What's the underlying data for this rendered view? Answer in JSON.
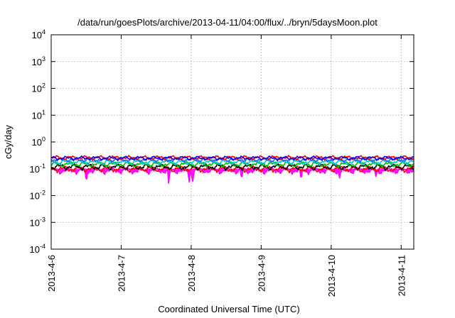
{
  "chart_data": {
    "type": "line",
    "title": "/data/run/goesPlots/archive/2013-04-11/04:00/flux/../bryn/5daysMoon.plot",
    "xlabel": "Coordinated Universal Time (UTC)",
    "ylabel": "cGy/day",
    "xlim": [
      0,
      5.18
    ],
    "x_ticks": [
      {
        "value": 0,
        "label": "2013-4-6"
      },
      {
        "value": 1,
        "label": "2013-4-7"
      },
      {
        "value": 2,
        "label": "2013-4-8"
      },
      {
        "value": 3,
        "label": "2013-4-9"
      },
      {
        "value": 4,
        "label": "2013-4-10"
      },
      {
        "value": 5,
        "label": "2013-4-11"
      }
    ],
    "y_scale": "log",
    "ylim": [
      0.0001,
      10000
    ],
    "y_ticks": [
      {
        "value": 0.0001,
        "base": "10",
        "exp": "-4"
      },
      {
        "value": 0.001,
        "base": "10",
        "exp": "-3"
      },
      {
        "value": 0.01,
        "base": "10",
        "exp": "-2"
      },
      {
        "value": 0.1,
        "base": "10",
        "exp": "-1"
      },
      {
        "value": 1,
        "base": "10",
        "exp": "0"
      },
      {
        "value": 10,
        "base": "10",
        "exp": "1"
      },
      {
        "value": 100,
        "base": "10",
        "exp": "2"
      },
      {
        "value": 1000,
        "base": "10",
        "exp": "3"
      },
      {
        "value": 10000,
        "base": "10",
        "exp": "4"
      }
    ],
    "grid": true,
    "series": [
      {
        "color": "#ff00ff",
        "fill": true,
        "base": 0.085,
        "amp": 0.05,
        "dips": [
          [
            0.5,
            0.03
          ],
          [
            1.68,
            0.025
          ],
          [
            1.97,
            0.028
          ],
          [
            2.02,
            0.032
          ],
          [
            2.72,
            0.04
          ],
          [
            3.57,
            0.035
          ],
          [
            4.12,
            0.045
          ],
          [
            4.64,
            0.05
          ]
        ]
      },
      {
        "color": "#ff0000",
        "fill": false,
        "base": 0.1,
        "amp": 0.06,
        "dips": []
      },
      {
        "color": "#000000",
        "fill": false,
        "base": 0.12,
        "amp": 0.07,
        "dips": []
      },
      {
        "color": "#00c000",
        "fill": false,
        "base": 0.15,
        "amp": 0.08,
        "dips": []
      },
      {
        "color": "#00cccc",
        "fill": false,
        "base": 0.18,
        "amp": 0.09,
        "dips": []
      },
      {
        "color": "#1e64ff",
        "fill": false,
        "base": 0.22,
        "amp": 0.1,
        "dips": []
      },
      {
        "color": "#ff0000",
        "fill": false,
        "base": 0.26,
        "amp": 0.11,
        "dips": []
      },
      {
        "color": "#0000ff",
        "fill": false,
        "base": 0.25,
        "amp": 0.1,
        "dips": []
      }
    ]
  }
}
